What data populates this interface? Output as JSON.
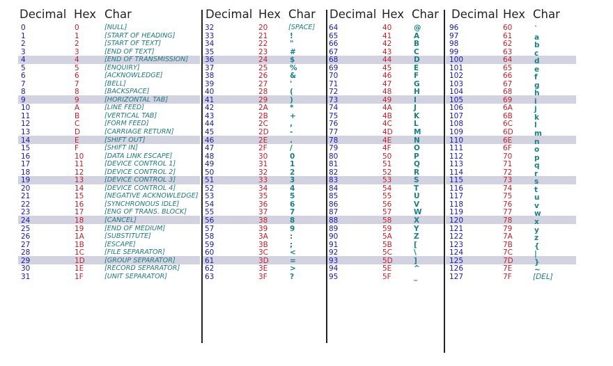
{
  "header_labels": [
    "Decimal",
    "Hex",
    "Char"
  ],
  "columns": [
    {
      "rows": [
        [
          "0",
          "0",
          "[NULL]"
        ],
        [
          "1",
          "1",
          "[START OF HEADING]"
        ],
        [
          "2",
          "2",
          "[START OF TEXT]"
        ],
        [
          "3",
          "3",
          "[END OF TEXT]"
        ],
        [
          "4",
          "4",
          "[END OF TRANSMISSION]"
        ],
        [
          "5",
          "5",
          "[ENQUIRY]"
        ],
        [
          "6",
          "6",
          "[ACKNOWLEDGE]"
        ],
        [
          "7",
          "7",
          "[BELL]"
        ],
        [
          "8",
          "8",
          "[BACKSPACE]"
        ],
        [
          "9",
          "9",
          "[HORIZONTAL TAB]"
        ],
        [
          "10",
          "A",
          "[LINE FEED]"
        ],
        [
          "11",
          "B",
          "[VERTICAL TAB]"
        ],
        [
          "12",
          "C",
          "[FORM FEED]"
        ],
        [
          "13",
          "D",
          "[CARRIAGE RETURN]"
        ],
        [
          "14",
          "E",
          "[SHIFT OUT]"
        ],
        [
          "15",
          "F",
          "[SHIFT IN]"
        ],
        [
          "16",
          "10",
          "[DATA LINK ESCAPE]"
        ],
        [
          "17",
          "11",
          "[DEVICE CONTROL 1]"
        ],
        [
          "18",
          "12",
          "[DEVICE CONTROL 2]"
        ],
        [
          "19",
          "13",
          "[DEVICE CONTROL 3]"
        ],
        [
          "20",
          "14",
          "[DEVICE CONTROL 4]"
        ],
        [
          "21",
          "15",
          "[NEGATIVE ACKNOWLEDGE]"
        ],
        [
          "22",
          "16",
          "[SYNCHRONOUS IDLE]"
        ],
        [
          "23",
          "17",
          "[ENG OF TRANS. BLOCK]"
        ],
        [
          "24",
          "18",
          "[CANCEL]"
        ],
        [
          "25",
          "19",
          "[END OF MEDIUM]"
        ],
        [
          "26",
          "1A",
          "[SUBSTITUTE]"
        ],
        [
          "27",
          "1B",
          "[ESCAPE]"
        ],
        [
          "28",
          "1C",
          "[FILE SEPARATOR]"
        ],
        [
          "29",
          "1D",
          "[GROUP SEPARATOR]"
        ],
        [
          "30",
          "1E",
          "[RECORD SEPARATOR]"
        ],
        [
          "31",
          "1F",
          "[UNIT SEPARATOR]"
        ]
      ]
    },
    {
      "rows": [
        [
          "32",
          "20",
          "[SPACE]"
        ],
        [
          "33",
          "21",
          "!"
        ],
        [
          "34",
          "22",
          "\""
        ],
        [
          "35",
          "23",
          "#"
        ],
        [
          "36",
          "24",
          "$"
        ],
        [
          "37",
          "25",
          "%"
        ],
        [
          "38",
          "26",
          "&"
        ],
        [
          "39",
          "27",
          "'"
        ],
        [
          "40",
          "28",
          "("
        ],
        [
          "41",
          "29",
          ")"
        ],
        [
          "42",
          "2A",
          "*"
        ],
        [
          "43",
          "2B",
          "+"
        ],
        [
          "44",
          "2C",
          ","
        ],
        [
          "45",
          "2D",
          "-"
        ],
        [
          "46",
          "2E",
          "."
        ],
        [
          "47",
          "2F",
          "/"
        ],
        [
          "48",
          "30",
          "0"
        ],
        [
          "49",
          "31",
          "1"
        ],
        [
          "50",
          "32",
          "2"
        ],
        [
          "51",
          "33",
          "3"
        ],
        [
          "52",
          "34",
          "4"
        ],
        [
          "53",
          "35",
          "5"
        ],
        [
          "54",
          "36",
          "6"
        ],
        [
          "55",
          "37",
          "7"
        ],
        [
          "56",
          "38",
          "8"
        ],
        [
          "57",
          "39",
          "9"
        ],
        [
          "58",
          "3A",
          ":"
        ],
        [
          "59",
          "3B",
          ";"
        ],
        [
          "60",
          "3C",
          "<"
        ],
        [
          "61",
          "3D",
          "="
        ],
        [
          "62",
          "3E",
          ">"
        ],
        [
          "63",
          "3F",
          "?"
        ]
      ]
    },
    {
      "rows": [
        [
          "64",
          "40",
          "@"
        ],
        [
          "65",
          "41",
          "A"
        ],
        [
          "66",
          "42",
          "B"
        ],
        [
          "67",
          "43",
          "C"
        ],
        [
          "68",
          "44",
          "D"
        ],
        [
          "69",
          "45",
          "E"
        ],
        [
          "70",
          "46",
          "F"
        ],
        [
          "71",
          "47",
          "G"
        ],
        [
          "72",
          "48",
          "H"
        ],
        [
          "73",
          "49",
          "I"
        ],
        [
          "74",
          "4A",
          "J"
        ],
        [
          "75",
          "4B",
          "K"
        ],
        [
          "76",
          "4C",
          "L"
        ],
        [
          "77",
          "4D",
          "M"
        ],
        [
          "78",
          "4E",
          "N"
        ],
        [
          "79",
          "4F",
          "O"
        ],
        [
          "80",
          "50",
          "P"
        ],
        [
          "81",
          "51",
          "Q"
        ],
        [
          "82",
          "52",
          "R"
        ],
        [
          "83",
          "53",
          "S"
        ],
        [
          "84",
          "54",
          "T"
        ],
        [
          "85",
          "55",
          "U"
        ],
        [
          "86",
          "56",
          "V"
        ],
        [
          "87",
          "57",
          "W"
        ],
        [
          "88",
          "58",
          "X"
        ],
        [
          "89",
          "59",
          "Y"
        ],
        [
          "90",
          "5A",
          "Z"
        ],
        [
          "91",
          "5B",
          "["
        ],
        [
          "92",
          "5C",
          "\\"
        ],
        [
          "93",
          "5D",
          "]"
        ],
        [
          "94",
          "5E",
          "^"
        ],
        [
          "95",
          "5F",
          "_"
        ]
      ]
    },
    {
      "rows": [
        [
          "96",
          "60",
          "`"
        ],
        [
          "97",
          "61",
          "a"
        ],
        [
          "98",
          "62",
          "b"
        ],
        [
          "99",
          "63",
          "c"
        ],
        [
          "100",
          "64",
          "d"
        ],
        [
          "101",
          "65",
          "e"
        ],
        [
          "102",
          "66",
          "f"
        ],
        [
          "103",
          "67",
          "g"
        ],
        [
          "104",
          "68",
          "h"
        ],
        [
          "105",
          "69",
          "i"
        ],
        [
          "106",
          "6A",
          "j"
        ],
        [
          "107",
          "6B",
          "k"
        ],
        [
          "108",
          "6C",
          "l"
        ],
        [
          "109",
          "6D",
          "m"
        ],
        [
          "110",
          "6E",
          "n"
        ],
        [
          "111",
          "6F",
          "o"
        ],
        [
          "112",
          "70",
          "p"
        ],
        [
          "113",
          "71",
          "q"
        ],
        [
          "114",
          "72",
          "r"
        ],
        [
          "115",
          "73",
          "s"
        ],
        [
          "116",
          "74",
          "t"
        ],
        [
          "117",
          "75",
          "u"
        ],
        [
          "118",
          "76",
          "v"
        ],
        [
          "119",
          "77",
          "w"
        ],
        [
          "120",
          "78",
          "x"
        ],
        [
          "121",
          "79",
          "y"
        ],
        [
          "122",
          "7A",
          "z"
        ],
        [
          "123",
          "7B",
          "{"
        ],
        [
          "124",
          "7C",
          "|"
        ],
        [
          "125",
          "7D",
          "}"
        ],
        [
          "126",
          "7E",
          "~"
        ],
        [
          "127",
          "7F",
          "[DEL]"
        ]
      ]
    }
  ],
  "colors": {
    "decimal": "#1a1aa6",
    "hex": "#c0202a",
    "char": "#1a7f86",
    "band": "#d2d2e1",
    "rule": "#222222"
  }
}
